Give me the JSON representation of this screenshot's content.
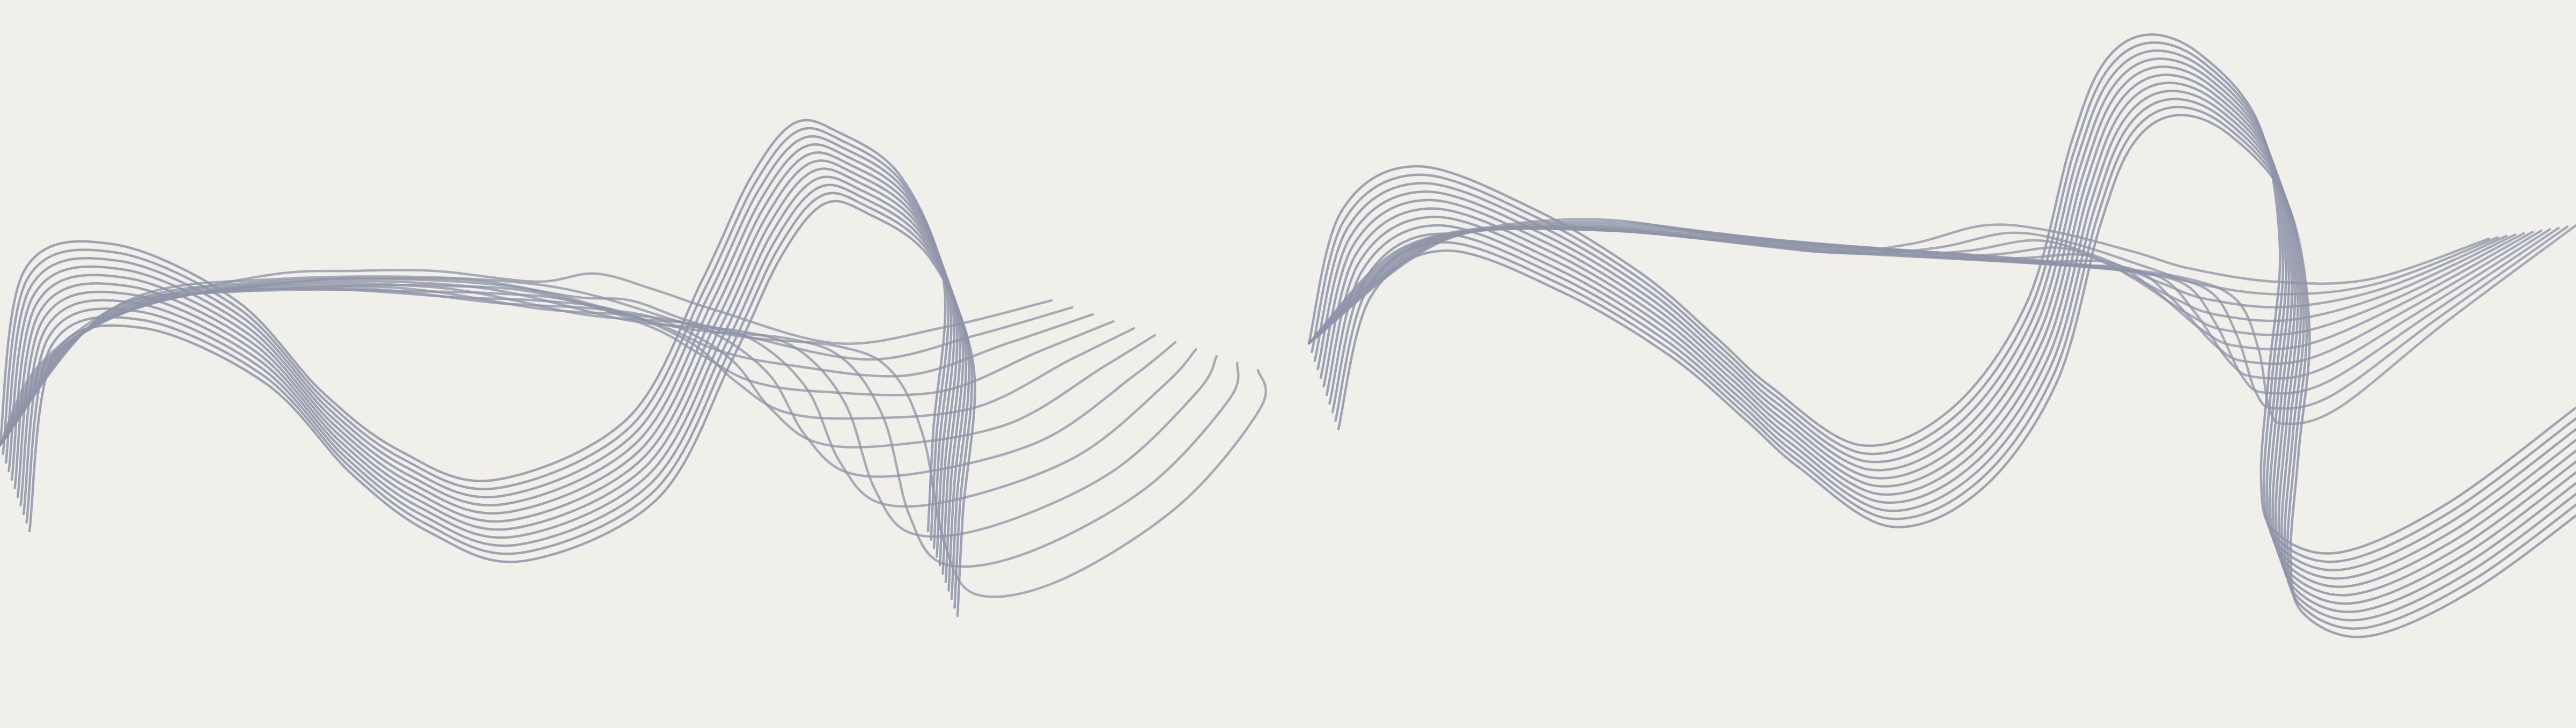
{
  "background_color": "#f1efe9",
  "line_color": "#8e95a8",
  "line_opacity": 0.85,
  "motif": "line-wave-icon",
  "wave_groups": [
    {
      "name": "left-wave",
      "line_count": 11
    },
    {
      "name": "right-wave",
      "line_count": 11
    }
  ]
}
